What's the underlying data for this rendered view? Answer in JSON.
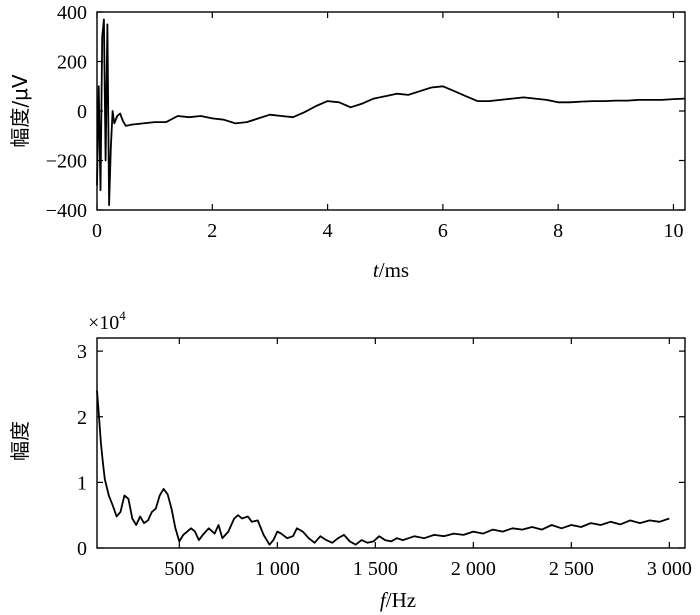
{
  "chart_data": [
    {
      "type": "line",
      "xlabel_italic": "t",
      "xlabel_rest": "/ms",
      "ylabel": "幅度/μV",
      "xlim": [
        0,
        10.2
      ],
      "ylim": [
        -400,
        400
      ],
      "xticks": [
        0,
        2,
        4,
        6,
        8,
        10
      ],
      "xtick_labels": [
        "0",
        "2",
        "4",
        "6",
        "8",
        "10"
      ],
      "yticks": [
        400,
        200,
        0,
        -200,
        -400
      ],
      "ytick_labels": [
        "400",
        "200",
        "0",
        "−200",
        "−400"
      ],
      "grid": false,
      "series": [
        {
          "x": [
            0,
            0.03,
            0.06,
            0.09,
            0.12,
            0.15,
            0.18,
            0.21,
            0.24,
            0.27,
            0.3,
            0.35,
            0.4,
            0.45,
            0.5,
            0.6,
            0.8,
            1.0,
            1.2,
            1.4,
            1.6,
            1.8,
            2.0,
            2.2,
            2.4,
            2.6,
            2.8,
            3.0,
            3.2,
            3.4,
            3.6,
            3.8,
            4.0,
            4.2,
            4.4,
            4.6,
            4.8,
            5.0,
            5.2,
            5.4,
            5.6,
            5.8,
            6.0,
            6.2,
            6.4,
            6.6,
            6.8,
            7.0,
            7.2,
            7.4,
            7.6,
            7.8,
            8.0,
            8.2,
            8.4,
            8.6,
            8.8,
            9.0,
            9.2,
            9.4,
            9.6,
            9.8,
            10.0,
            10.2
          ],
          "y": [
            -300,
            100,
            -320,
            300,
            370,
            -200,
            350,
            -380,
            -150,
            0,
            -50,
            -20,
            -10,
            -40,
            -60,
            -55,
            -50,
            -45,
            -45,
            -20,
            -25,
            -20,
            -30,
            -35,
            -50,
            -45,
            -30,
            -15,
            -20,
            -25,
            -5,
            20,
            40,
            35,
            15,
            30,
            50,
            60,
            70,
            65,
            80,
            95,
            100,
            80,
            60,
            40,
            40,
            45,
            50,
            55,
            50,
            45,
            35,
            35,
            38,
            40,
            40,
            42,
            42,
            45,
            45,
            45,
            48,
            50
          ]
        }
      ]
    },
    {
      "type": "line",
      "multiplier": "×10",
      "multiplier_exp": "4",
      "xlabel_italic": "f",
      "xlabel_rest": "/Hz",
      "ylabel": "幅度",
      "xlim": [
        80,
        3080
      ],
      "ylim": [
        0,
        3.2
      ],
      "xticks": [
        500,
        1000,
        1500,
        2000,
        2500,
        3000
      ],
      "xtick_labels": [
        "500",
        "1 000",
        "1 500",
        "2 000",
        "2 500",
        "3 000"
      ],
      "yticks": [
        0,
        1,
        2,
        3
      ],
      "ytick_labels": [
        "0",
        "1",
        "2",
        "3"
      ],
      "grid": false,
      "series": [
        {
          "x": [
            80,
            90,
            100,
            110,
            120,
            140,
            160,
            180,
            200,
            220,
            240,
            260,
            280,
            300,
            320,
            340,
            360,
            380,
            400,
            420,
            440,
            460,
            480,
            500,
            520,
            540,
            560,
            580,
            600,
            620,
            650,
            680,
            700,
            720,
            750,
            780,
            800,
            820,
            850,
            870,
            900,
            930,
            960,
            980,
            1000,
            1020,
            1050,
            1080,
            1100,
            1130,
            1160,
            1190,
            1220,
            1250,
            1280,
            1310,
            1340,
            1370,
            1400,
            1430,
            1460,
            1490,
            1520,
            1550,
            1580,
            1610,
            1640,
            1670,
            1700,
            1750,
            1800,
            1850,
            1900,
            1950,
            2000,
            2050,
            2100,
            2150,
            2200,
            2250,
            2300,
            2350,
            2400,
            2450,
            2500,
            2550,
            2600,
            2650,
            2700,
            2750,
            2800,
            2850,
            2900,
            2950,
            3000
          ],
          "y": [
            2.4,
            2.0,
            1.6,
            1.3,
            1.05,
            0.8,
            0.65,
            0.48,
            0.55,
            0.8,
            0.75,
            0.45,
            0.35,
            0.48,
            0.38,
            0.42,
            0.55,
            0.6,
            0.8,
            0.9,
            0.82,
            0.6,
            0.3,
            0.1,
            0.2,
            0.25,
            0.3,
            0.25,
            0.12,
            0.2,
            0.3,
            0.22,
            0.35,
            0.15,
            0.25,
            0.45,
            0.5,
            0.45,
            0.48,
            0.4,
            0.42,
            0.2,
            0.05,
            0.12,
            0.25,
            0.22,
            0.15,
            0.18,
            0.3,
            0.25,
            0.15,
            0.08,
            0.18,
            0.12,
            0.08,
            0.15,
            0.2,
            0.1,
            0.05,
            0.12,
            0.08,
            0.1,
            0.18,
            0.12,
            0.1,
            0.15,
            0.12,
            0.15,
            0.18,
            0.15,
            0.2,
            0.18,
            0.22,
            0.2,
            0.25,
            0.22,
            0.28,
            0.25,
            0.3,
            0.28,
            0.32,
            0.28,
            0.35,
            0.3,
            0.35,
            0.32,
            0.38,
            0.35,
            0.4,
            0.36,
            0.42,
            0.38,
            0.42,
            0.4,
            0.45
          ]
        }
      ]
    }
  ]
}
